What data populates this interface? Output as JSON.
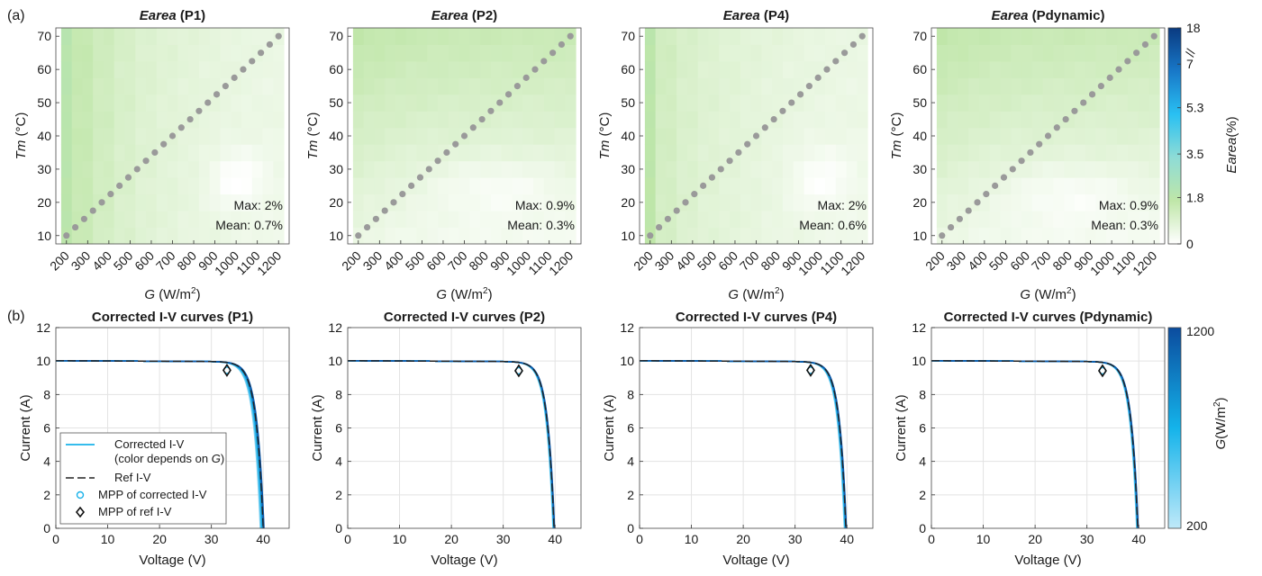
{
  "panel_labels": {
    "a": "(a)",
    "b": "(b)"
  },
  "colors": {
    "curve_light": "#8fd6f2",
    "curve_mid": "#1ab2ea",
    "curve_dark": "#0b56a6",
    "ref_line": "#222222",
    "marker": "#9a9a9a",
    "grid": "#e3e3e3"
  },
  "colorbars": [
    {
      "label_italic": "Earea",
      "label_rest": "(%)",
      "ticks": [
        "0",
        "1.8",
        "3.5",
        "5.3",
        "7",
        "18"
      ],
      "break_symbol": "//",
      "colors": [
        "#ffffff",
        "#bfe6a8",
        "#8edcd6",
        "#29c0f2",
        "#1878c8",
        "#0a3a80"
      ]
    },
    {
      "label_italic": "G",
      "label_rest": "(W/m",
      "label_sup": "2",
      "label_close": ")",
      "ticks": [
        "200",
        "1200"
      ],
      "colors": [
        "#bfe9f9",
        "#14b3ea",
        "#0b4c9e"
      ]
    }
  ],
  "chart_data": [
    {
      "type": "heatmap",
      "title_italic": "Earea",
      "title_rest": " (P1)",
      "xlabel_italic": "G",
      "xlabel_rest": " (W/m",
      "xlabel_sup": "2",
      "xlabel_close": ")",
      "ylabel_italic": "Tm",
      "ylabel_rest": " (°C)",
      "x_ticks": [
        200,
        300,
        400,
        500,
        600,
        700,
        800,
        900,
        1000,
        1100,
        1200
      ],
      "y_ticks": [
        10,
        20,
        30,
        40,
        50,
        60,
        70
      ],
      "xlim": [
        150,
        1250
      ],
      "ylim": [
        7.5,
        72.5
      ],
      "stats": [
        "Max: 2%",
        "Mean: 0.7%"
      ],
      "grid": {
        "g_centers": [
          200,
          250,
          300,
          350,
          400,
          450,
          500,
          550,
          600,
          650,
          700,
          750,
          800,
          850,
          900,
          950,
          1000,
          1050,
          1100,
          1150,
          1200
        ],
        "t_centers": [
          10,
          15,
          20,
          25,
          30,
          35,
          40,
          45,
          50,
          55,
          60,
          65,
          70
        ]
      },
      "field": {
        "base": [
          1.8,
          1.4,
          1.15,
          0.95,
          0.8,
          0.7,
          0.62,
          0.56,
          0.5,
          0.45,
          0.42
        ],
        "temp_coef": 0.004,
        "trough_strength": 0.55,
        "trough_center": [
          1000,
          27
        ],
        "trough_width": [
          130,
          9
        ]
      },
      "diagonal": {
        "g": [
          200,
          1200
        ],
        "tm": [
          10,
          70
        ],
        "n": 25
      }
    },
    {
      "type": "heatmap",
      "title_italic": "Earea",
      "title_rest": " (P2)",
      "xlabel_italic": "G",
      "xlabel_rest": " (W/m",
      "xlabel_sup": "2",
      "xlabel_close": ")",
      "ylabel_italic": "Tm",
      "ylabel_rest": " (°C)",
      "x_ticks": [
        200,
        300,
        400,
        500,
        600,
        700,
        800,
        900,
        1000,
        1100,
        1200
      ],
      "y_ticks": [
        10,
        20,
        30,
        40,
        50,
        60,
        70
      ],
      "xlim": [
        150,
        1250
      ],
      "ylim": [
        7.5,
        72.5
      ],
      "stats": [
        "Max: 0.9%",
        "Mean: 0.3%"
      ],
      "grid": {
        "g_centers": [
          200,
          250,
          300,
          350,
          400,
          450,
          500,
          550,
          600,
          650,
          700,
          750,
          800,
          850,
          900,
          950,
          1000,
          1050,
          1100,
          1150,
          1200
        ],
        "t_centers": [
          10,
          15,
          20,
          25,
          30,
          35,
          40,
          45,
          50,
          55,
          60,
          65,
          70
        ]
      },
      "field": {
        "base": [
          0.55,
          0.48,
          0.42,
          0.38,
          0.35,
          0.33,
          0.32,
          0.31,
          0.3,
          0.3,
          0.3
        ],
        "temp_coef": 0.018,
        "trough_strength": 0.4,
        "trough_center": [
          850,
          25
        ],
        "trough_width": [
          320,
          9
        ]
      },
      "diagonal": {
        "g": [
          200,
          1200
        ],
        "tm": [
          10,
          70
        ],
        "n": 25
      }
    },
    {
      "type": "heatmap",
      "title_italic": "Earea",
      "title_rest": " (P4)",
      "xlabel_italic": "G",
      "xlabel_rest": " (W/m",
      "xlabel_sup": "2",
      "xlabel_close": ")",
      "ylabel_italic": "Tm",
      "ylabel_rest": " (°C)",
      "x_ticks": [
        200,
        300,
        400,
        500,
        600,
        700,
        800,
        900,
        1000,
        1100,
        1200
      ],
      "y_ticks": [
        10,
        20,
        30,
        40,
        50,
        60,
        70
      ],
      "xlim": [
        150,
        1250
      ],
      "ylim": [
        7.5,
        72.5
      ],
      "stats": [
        "Max: 2%",
        "Mean: 0.6%"
      ],
      "grid": {
        "g_centers": [
          200,
          250,
          300,
          350,
          400,
          450,
          500,
          550,
          600,
          650,
          700,
          750,
          800,
          850,
          900,
          950,
          1000,
          1050,
          1100,
          1150,
          1200
        ],
        "t_centers": [
          10,
          15,
          20,
          25,
          30,
          35,
          40,
          45,
          50,
          55,
          60,
          65,
          70
        ]
      },
      "field": {
        "base": [
          1.7,
          1.1,
          0.9,
          0.78,
          0.7,
          0.63,
          0.57,
          0.52,
          0.48,
          0.44,
          0.42
        ],
        "temp_coef": 0.004,
        "trough_strength": 0.45,
        "trough_center": [
          1000,
          27
        ],
        "trough_width": [
          150,
          10
        ]
      },
      "diagonal": {
        "g": [
          200,
          1200
        ],
        "tm": [
          10,
          70
        ],
        "n": 25
      }
    },
    {
      "type": "heatmap",
      "title_italic": "Earea",
      "title_rest": " (Pdynamic)",
      "xlabel_italic": "G",
      "xlabel_rest": " (W/m",
      "xlabel_sup": "2",
      "xlabel_close": ")",
      "ylabel_italic": "Tm",
      "ylabel_rest": " (°C)",
      "x_ticks": [
        200,
        300,
        400,
        500,
        600,
        700,
        800,
        900,
        1000,
        1100,
        1200
      ],
      "y_ticks": [
        10,
        20,
        30,
        40,
        50,
        60,
        70
      ],
      "xlim": [
        150,
        1250
      ],
      "ylim": [
        7.5,
        72.5
      ],
      "stats": [
        "Max: 0.9%",
        "Mean: 0.3%"
      ],
      "grid": {
        "g_centers": [
          200,
          250,
          300,
          350,
          400,
          450,
          500,
          550,
          600,
          650,
          700,
          750,
          800,
          850,
          900,
          950,
          1000,
          1050,
          1100,
          1150,
          1200
        ],
        "t_centers": [
          10,
          15,
          20,
          25,
          30,
          35,
          40,
          45,
          50,
          55,
          60,
          65,
          70
        ]
      },
      "field": {
        "base": [
          0.55,
          0.48,
          0.42,
          0.38,
          0.35,
          0.33,
          0.32,
          0.31,
          0.3,
          0.3,
          0.3
        ],
        "temp_coef": 0.018,
        "trough_strength": 0.4,
        "trough_center": [
          800,
          23
        ],
        "trough_width": [
          320,
          9
        ]
      },
      "diagonal": {
        "g": [
          200,
          1200
        ],
        "tm": [
          10,
          70
        ],
        "n": 25
      }
    },
    {
      "type": "line",
      "title": "Corrected I-V curves (P1)",
      "xlabel": "Voltage (V)",
      "ylabel": "Current (A)",
      "xlim": [
        0,
        45
      ],
      "ylim": [
        0,
        12
      ],
      "x_ticks": [
        0,
        10,
        20,
        30,
        40
      ],
      "y_ticks": [
        0,
        2,
        4,
        6,
        8,
        10,
        12
      ],
      "grid": true,
      "model": {
        "isc": 10.02,
        "voc": 40.0,
        "vt": 1.35,
        "rs_slope": 0.0015
      },
      "corrected_spread": [
        -0.55,
        0.15
      ],
      "mpp_corrected": [
        33.0,
        9.45
      ],
      "mpp_ref": [
        33.0,
        9.45
      ],
      "legend": {
        "position": "lower-left",
        "entries": [
          {
            "name": "Corrected I-V",
            "sub_pre": "(color depends on ",
            "sub_italic": "G",
            "sub_post": ")",
            "kind": "line"
          },
          {
            "name": "Ref I-V",
            "kind": "dashed"
          },
          {
            "name": "MPP of corrected I-V",
            "kind": "circle"
          },
          {
            "name": "MPP of ref I-V",
            "kind": "diamond"
          }
        ]
      }
    },
    {
      "type": "line",
      "title": "Corrected I-V curves (P2)",
      "xlabel": "Voltage (V)",
      "ylabel": "Current (A)",
      "xlim": [
        0,
        45
      ],
      "ylim": [
        0,
        12
      ],
      "x_ticks": [
        0,
        10,
        20,
        30,
        40
      ],
      "y_ticks": [
        0,
        2,
        4,
        6,
        8,
        10,
        12
      ],
      "grid": true,
      "model": {
        "isc": 10.02,
        "voc": 39.8,
        "vt": 1.3,
        "rs_slope": 0.0015
      },
      "corrected_spread": [
        -0.2,
        0.1
      ],
      "mpp_corrected": [
        33.0,
        9.42
      ],
      "mpp_ref": [
        33.0,
        9.42
      ]
    },
    {
      "type": "line",
      "title": "Corrected I-V curves (P4)",
      "xlabel": "Voltage (V)",
      "ylabel": "Current (A)",
      "xlim": [
        0,
        45
      ],
      "ylim": [
        0,
        12
      ],
      "x_ticks": [
        0,
        10,
        20,
        30,
        40
      ],
      "y_ticks": [
        0,
        2,
        4,
        6,
        8,
        10,
        12
      ],
      "grid": true,
      "model": {
        "isc": 10.02,
        "voc": 39.8,
        "vt": 1.3,
        "rs_slope": 0.0015
      },
      "corrected_spread": [
        -0.3,
        0.1
      ],
      "mpp_corrected": [
        33.0,
        9.45
      ],
      "mpp_ref": [
        33.0,
        9.45
      ]
    },
    {
      "type": "line",
      "title": "Corrected I-V curves (Pdynamic)",
      "xlabel": "Voltage (V)",
      "ylabel": "Current (A)",
      "xlim": [
        0,
        45
      ],
      "ylim": [
        0,
        12
      ],
      "x_ticks": [
        0,
        10,
        20,
        30,
        40
      ],
      "y_ticks": [
        0,
        2,
        4,
        6,
        8,
        10,
        12
      ],
      "grid": true,
      "model": {
        "isc": 10.02,
        "voc": 39.8,
        "vt": 1.3,
        "rs_slope": 0.0015
      },
      "corrected_spread": [
        -0.2,
        0.1
      ],
      "mpp_corrected": [
        33.0,
        9.42
      ],
      "mpp_ref": [
        33.0,
        9.42
      ]
    }
  ]
}
